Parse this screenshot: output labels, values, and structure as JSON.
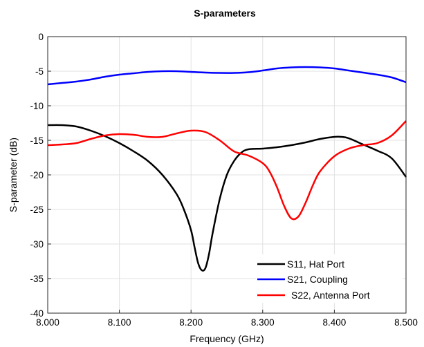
{
  "chart_data": {
    "type": "line",
    "title": "S-parameters",
    "xlabel": "Frequency (GHz)",
    "ylabel": "S-parameter (dB)",
    "xlim": [
      8.0,
      8.5
    ],
    "ylim": [
      -40,
      0
    ],
    "x_ticks": [
      "8.000",
      "8.100",
      "8.200",
      "8.300",
      "8.400",
      "8.500"
    ],
    "y_ticks": [
      "0",
      "-5",
      "-10",
      "-15",
      "-20",
      "-25",
      "-30",
      "-35",
      "-40"
    ],
    "grid": true,
    "legend_position": "bottom-right",
    "series": [
      {
        "name": "S11, Hat Port",
        "color": "#000000",
        "x": [
          8.0,
          8.02,
          8.04,
          8.06,
          8.08,
          8.1,
          8.12,
          8.14,
          8.16,
          8.18,
          8.19,
          8.2,
          8.205,
          8.21,
          8.215,
          8.22,
          8.225,
          8.23,
          8.24,
          8.25,
          8.26,
          8.27,
          8.28,
          8.3,
          8.32,
          8.34,
          8.36,
          8.38,
          8.4,
          8.41,
          8.42,
          8.44,
          8.46,
          8.48,
          8.5
        ],
        "y": [
          -12.8,
          -12.8,
          -13.0,
          -13.6,
          -14.4,
          -15.4,
          -16.6,
          -18.0,
          -20.0,
          -22.8,
          -25.0,
          -28.0,
          -30.5,
          -32.8,
          -33.8,
          -33.5,
          -31.5,
          -28.5,
          -23.5,
          -20.0,
          -18.0,
          -16.8,
          -16.3,
          -16.2,
          -16.0,
          -15.7,
          -15.3,
          -14.8,
          -14.5,
          -14.5,
          -14.7,
          -15.6,
          -16.5,
          -17.6,
          -20.3
        ]
      },
      {
        "name": "S21, Coupling",
        "color": "#0000ff",
        "x": [
          8.0,
          8.02,
          8.04,
          8.06,
          8.08,
          8.1,
          8.12,
          8.14,
          8.16,
          8.18,
          8.2,
          8.22,
          8.24,
          8.26,
          8.28,
          8.3,
          8.32,
          8.34,
          8.36,
          8.38,
          8.4,
          8.42,
          8.44,
          8.46,
          8.48,
          8.5
        ],
        "y": [
          -6.9,
          -6.7,
          -6.5,
          -6.2,
          -5.8,
          -5.5,
          -5.3,
          -5.1,
          -5.0,
          -5.0,
          -5.1,
          -5.2,
          -5.25,
          -5.25,
          -5.15,
          -4.9,
          -4.6,
          -4.45,
          -4.4,
          -4.45,
          -4.6,
          -4.9,
          -5.2,
          -5.5,
          -5.9,
          -6.6
        ]
      },
      {
        "name": "S22, Antenna Port",
        "color": "#ff0000",
        "x": [
          8.0,
          8.02,
          8.04,
          8.06,
          8.08,
          8.1,
          8.12,
          8.14,
          8.16,
          8.18,
          8.2,
          8.22,
          8.24,
          8.26,
          8.28,
          8.3,
          8.31,
          8.32,
          8.33,
          8.34,
          8.35,
          8.36,
          8.37,
          8.38,
          8.4,
          8.42,
          8.44,
          8.46,
          8.48,
          8.5
        ],
        "y": [
          -15.7,
          -15.6,
          -15.4,
          -14.8,
          -14.3,
          -14.1,
          -14.2,
          -14.5,
          -14.5,
          -14.0,
          -13.6,
          -13.8,
          -15.0,
          -16.6,
          -17.2,
          -18.3,
          -19.6,
          -21.8,
          -24.5,
          -26.3,
          -26.0,
          -24.0,
          -21.5,
          -19.5,
          -17.3,
          -16.2,
          -15.7,
          -15.4,
          -14.3,
          -12.2
        ]
      }
    ]
  }
}
